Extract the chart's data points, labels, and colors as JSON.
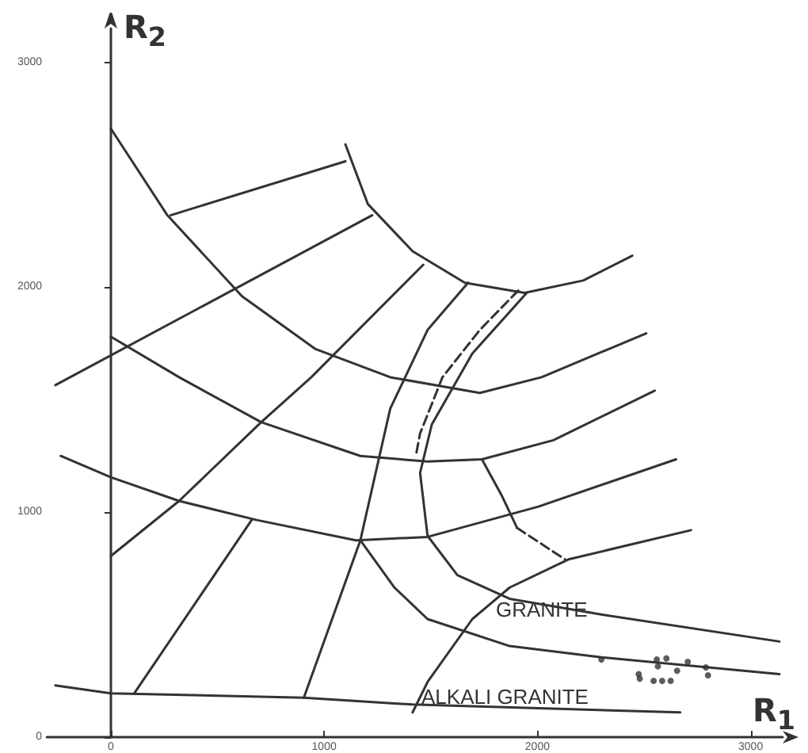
{
  "chart_data": {
    "type": "line",
    "xlabel": "R$_{1}$",
    "ylabel": "R$_{2}$",
    "xlim": [
      -300,
      3150
    ],
    "ylim": [
      0,
      3150
    ],
    "xticks": [
      0,
      1000,
      2000,
      3000
    ],
    "yticks": [
      0,
      1000,
      2000,
      3000
    ],
    "marker": "none",
    "line_style": "solid",
    "series": [
      {
        "color": "#333333",
        "x": [
          1100,
          1205,
          1415,
          1660,
          1940,
          2215,
          2445
        ],
        "values": [
          2635,
          2370,
          2160,
          2020,
          1975,
          2030,
          2140
        ]
      },
      {
        "color": "#333333",
        "x": [
          280,
          1100
        ],
        "values": [
          2320,
          2560
        ]
      },
      {
        "color": "#333333",
        "x": [
          0,
          265,
          615,
          960,
          1310,
          1730,
          2020,
          2510
        ],
        "values": [
          2705,
          2320,
          1960,
          1725,
          1600,
          1530,
          1600,
          1795
        ]
      },
      {
        "color": "#333333",
        "x": [
          -260,
          1225
        ],
        "values": [
          1565,
          2320
        ]
      },
      {
        "color": "#333333",
        "x": [
          0,
          320,
          705,
          1170,
          1485,
          1740,
          2075,
          2550
        ],
        "values": [
          1780,
          1600,
          1400,
          1250,
          1225,
          1235,
          1320,
          1540
        ]
      },
      {
        "color": "#333333",
        "x": [
          0,
          320,
          705,
          940,
          1465
        ],
        "values": [
          805,
          1050,
          1400,
          1600,
          2100
        ]
      },
      {
        "color": "#333333",
        "x": [
          -235,
          0,
          320,
          685,
          1150,
          1485,
          2005,
          2650
        ],
        "values": [
          1250,
          1155,
          1050,
          965,
          875,
          890,
          1025,
          1235
        ]
      },
      {
        "color": "#333333",
        "x": [
          110,
          660
        ],
        "values": [
          195,
          965
        ]
      },
      {
        "color": "#333333",
        "x": [
          905,
          1170,
          1310,
          1485,
          1675
        ],
        "values": [
          175,
          875,
          1460,
          1810,
          2020
        ]
      },
      {
        "color": "#333333",
        "x": [
          1950,
          1695,
          1505,
          1450,
          1485,
          1625,
          1870,
          2300,
          3135
        ],
        "values": [
          1975,
          1705,
          1390,
          1175,
          895,
          720,
          615,
          545,
          425
        ]
      },
      {
        "color": "#333333",
        "x": [
          1170,
          1330,
          1485,
          1870,
          2300,
          3135
        ],
        "values": [
          875,
          665,
          525,
          405,
          355,
          280
        ]
      },
      {
        "color": "#333333",
        "x": [
          1740,
          1835,
          1905
        ],
        "values": [
          1235,
          1070,
          930
        ]
      },
      {
        "color": "#333333",
        "line_style": "dashed",
        "x": [
          1905,
          2130
        ],
        "values": [
          930,
          790
        ]
      },
      {
        "color": "#333333",
        "line_style": "dashed",
        "x": [
          1910,
          1730,
          1555,
          1450,
          1430
        ],
        "values": [
          1985,
          1810,
          1600,
          1350,
          1250
        ]
      },
      {
        "color": "#333333",
        "x": [
          1415,
          1485,
          1695,
          1870,
          2145,
          2720
        ],
        "values": [
          110,
          245,
          525,
          665,
          790,
          920
        ]
      },
      {
        "color": "#333333",
        "x": [
          -260,
          0,
          905,
          1415,
          2670
        ],
        "values": [
          230,
          195,
          175,
          145,
          110
        ]
      },
      {
        "type": "scatter",
        "color": "#333333",
        "marker": "circle",
        "x": [
          2300,
          2560,
          2565,
          2605,
          2705,
          2790,
          2800,
          2655,
          2475,
          2480,
          2545,
          2585,
          2625
        ],
        "values": [
          345,
          345,
          315,
          350,
          335,
          310,
          275,
          295,
          280,
          260,
          250,
          250,
          250
        ]
      }
    ],
    "annotations": [
      "GRANITE",
      "ALKALI GRANITE"
    ]
  }
}
